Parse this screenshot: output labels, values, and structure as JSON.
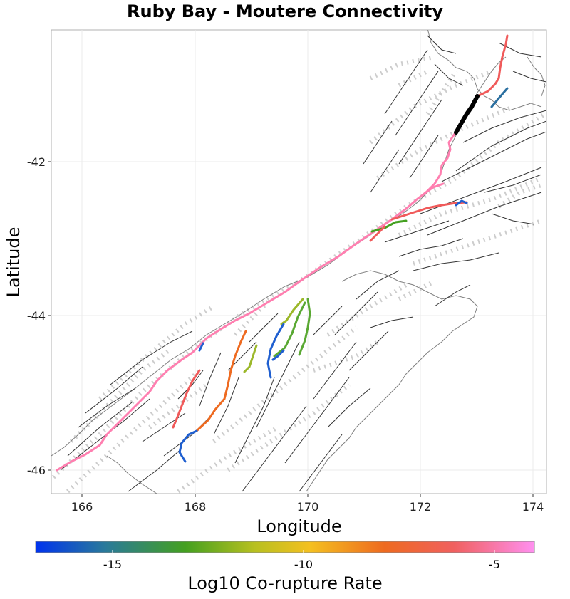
{
  "title": "Ruby Bay - Moutere Connectivity",
  "axes": {
    "x_label": "Longitude",
    "y_label": "Latitude",
    "x_ticks": [
      "166",
      "168",
      "170",
      "172",
      "174"
    ],
    "y_ticks": [
      "-42",
      "-44",
      "-46"
    ]
  },
  "colorbar": {
    "label": "Log10 Co-rupture Rate",
    "ticks": [
      "-15",
      "-10",
      "-5"
    ],
    "stops": [
      "#0033ee",
      "#2a7a9a",
      "#44a020",
      "#b8c020",
      "#f4c020",
      "#ee6a20",
      "#f06060",
      "#ff90f0"
    ]
  },
  "colors": {
    "coastline": "#808080",
    "fault_trace": "#333333",
    "fault_surface": "#c8c8c8",
    "source_fault": "#000000",
    "grid": "#ebebeb"
  }
}
